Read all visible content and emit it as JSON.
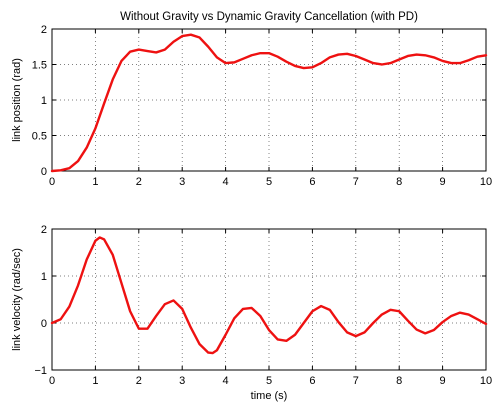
{
  "chart_data": [
    {
      "type": "line",
      "title": "Without Gravity vs Dynamic Gravity Cancellation (with PD)",
      "xlabel": "",
      "ylabel": "link position (rad)",
      "xlim": [
        0,
        10
      ],
      "ylim": [
        0,
        2
      ],
      "grid": true,
      "color": "#ee1111",
      "xticks": [
        "0",
        "1",
        "2",
        "3",
        "4",
        "5",
        "6",
        "7",
        "8",
        "9",
        "10"
      ],
      "yticks": [
        "0",
        "0.5",
        "1",
        "1.5",
        "2"
      ],
      "series": [
        {
          "x": [
            0,
            0.2,
            0.4,
            0.6,
            0.8,
            1.0,
            1.2,
            1.4,
            1.6,
            1.8,
            2.0,
            2.2,
            2.4,
            2.6,
            2.8,
            3.0,
            3.2,
            3.4,
            3.6,
            3.8,
            4.0,
            4.2,
            4.4,
            4.6,
            4.8,
            5.0,
            5.2,
            5.4,
            5.6,
            5.8,
            6.0,
            6.2,
            6.4,
            6.6,
            6.8,
            7.0,
            7.2,
            7.4,
            7.6,
            7.8,
            8.0,
            8.2,
            8.4,
            8.6,
            8.8,
            9.0,
            9.2,
            9.4,
            9.6,
            9.8,
            10.0
          ],
          "y": [
            0,
            0.01,
            0.04,
            0.14,
            0.33,
            0.6,
            0.95,
            1.29,
            1.55,
            1.68,
            1.71,
            1.69,
            1.67,
            1.71,
            1.82,
            1.9,
            1.92,
            1.88,
            1.75,
            1.6,
            1.52,
            1.53,
            1.58,
            1.63,
            1.66,
            1.66,
            1.61,
            1.54,
            1.48,
            1.45,
            1.46,
            1.52,
            1.6,
            1.64,
            1.65,
            1.62,
            1.57,
            1.52,
            1.5,
            1.52,
            1.57,
            1.62,
            1.64,
            1.63,
            1.6,
            1.55,
            1.52,
            1.52,
            1.56,
            1.61,
            1.63
          ]
        }
      ]
    },
    {
      "type": "line",
      "title": "",
      "xlabel": "time (s)",
      "ylabel": "link velocity (rad/sec)",
      "xlim": [
        0,
        10
      ],
      "ylim": [
        -1,
        2
      ],
      "grid": true,
      "color": "#ee1111",
      "xticks": [
        "0",
        "1",
        "2",
        "3",
        "4",
        "5",
        "6",
        "7",
        "8",
        "9",
        "10"
      ],
      "yticks": [
        "−1",
        "0",
        "1",
        "2"
      ],
      "series": [
        {
          "x": [
            0,
            0.2,
            0.4,
            0.6,
            0.8,
            1.0,
            1.1,
            1.2,
            1.4,
            1.6,
            1.8,
            2.0,
            2.2,
            2.4,
            2.6,
            2.8,
            3.0,
            3.2,
            3.4,
            3.6,
            3.7,
            3.8,
            4.0,
            4.2,
            4.4,
            4.6,
            4.8,
            5.0,
            5.2,
            5.4,
            5.6,
            5.8,
            6.0,
            6.2,
            6.4,
            6.6,
            6.8,
            7.0,
            7.2,
            7.4,
            7.6,
            7.8,
            8.0,
            8.2,
            8.4,
            8.6,
            8.8,
            9.0,
            9.2,
            9.4,
            9.6,
            9.8,
            10.0
          ],
          "y": [
            0,
            0.08,
            0.35,
            0.8,
            1.35,
            1.75,
            1.82,
            1.78,
            1.45,
            0.85,
            0.25,
            -0.12,
            -0.12,
            0.15,
            0.4,
            0.48,
            0.3,
            -0.1,
            -0.45,
            -0.63,
            -0.64,
            -0.58,
            -0.25,
            0.1,
            0.3,
            0.32,
            0.15,
            -0.15,
            -0.35,
            -0.38,
            -0.25,
            0,
            0.25,
            0.36,
            0.28,
            0.02,
            -0.2,
            -0.28,
            -0.2,
            0,
            0.18,
            0.28,
            0.25,
            0.05,
            -0.14,
            -0.22,
            -0.15,
            0.02,
            0.15,
            0.22,
            0.18,
            0.08,
            -0.02
          ]
        }
      ]
    }
  ]
}
